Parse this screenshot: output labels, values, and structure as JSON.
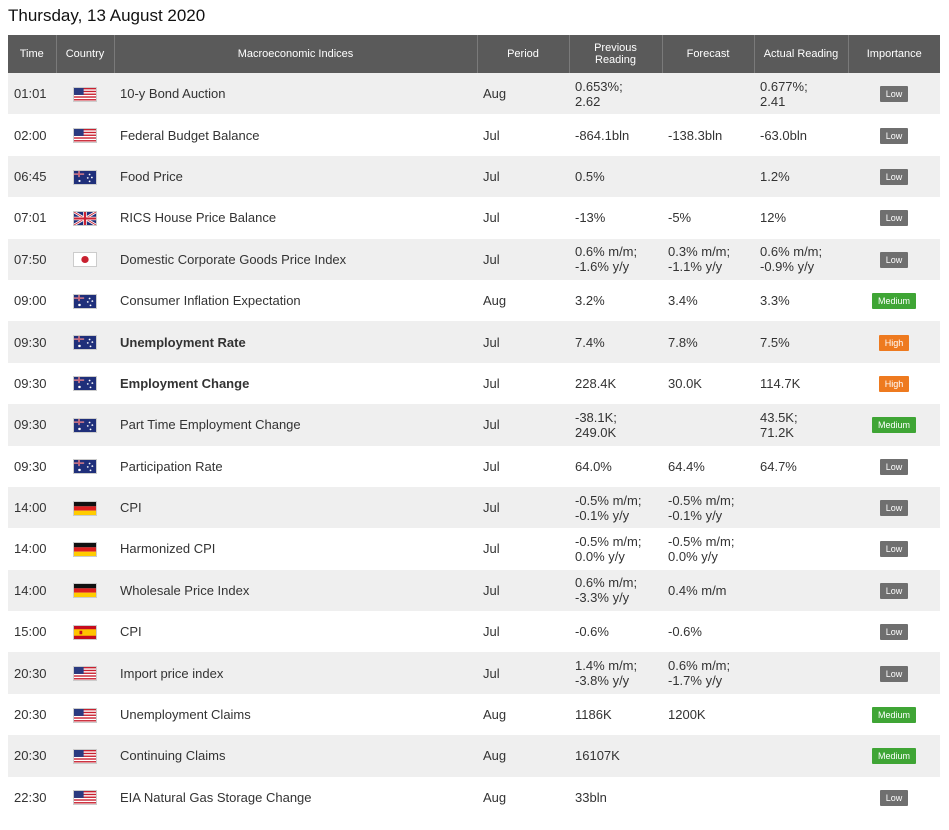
{
  "page_title": "Thursday, 13 August 2020",
  "headers": {
    "time": "Time",
    "country": "Country",
    "indices": "Macroeconomic Indices",
    "period": "Period",
    "previous_line1": "Previous",
    "previous_line2": "Reading",
    "forecast": "Forecast",
    "actual": "Actual Reading",
    "importance": "Importance"
  },
  "colors": {
    "header_bg": "#5a5a5a",
    "row_alt_bg": "#efefef",
    "positive": "#3a9a2c",
    "negative": "#e23a30",
    "low": "#6f6f6f",
    "medium": "#3fa535",
    "high": "#ee7a1f"
  },
  "rows": [
    {
      "time": "01:01",
      "flag": "us-flag-icon",
      "name": "10-y Bond Auction",
      "bold": false,
      "period": "Aug",
      "prev1": "0.653%;",
      "prev2": "2.62",
      "fc1": "",
      "fc2": "",
      "act1": "0.677%;",
      "act2": "2.41",
      "act_color": "",
      "importance": "Low"
    },
    {
      "time": "02:00",
      "flag": "us-flag-icon",
      "name": "Federal Budget Balance",
      "bold": false,
      "period": "Jul",
      "prev1": "-864.1bln",
      "prev2": "",
      "fc1": "-138.3bln",
      "fc2": "",
      "act1": "-63.0bln",
      "act2": "",
      "act_color": "green",
      "importance": "Low"
    },
    {
      "time": "06:45",
      "flag": "nz-flag-icon",
      "name": "Food Price",
      "bold": false,
      "period": "Jul",
      "prev1": "0.5%",
      "prev2": "",
      "fc1": "",
      "fc2": "",
      "act1": "1.2%",
      "act2": "",
      "act_color": "",
      "importance": "Low"
    },
    {
      "time": "07:01",
      "flag": "uk-flag-icon",
      "name": "RICS House Price Balance",
      "bold": false,
      "period": "Jul",
      "prev1": "-13%",
      "prev2": "",
      "fc1": "-5%",
      "fc2": "",
      "act1": "12%",
      "act2": "",
      "act_color": "green",
      "importance": "Low"
    },
    {
      "time": "07:50",
      "flag": "jp-flag-icon",
      "name": "Domestic Corporate Goods Price Index",
      "bold": false,
      "period": "Jul",
      "prev1": "0.6% m/m;",
      "prev2": "-1.6% y/y",
      "fc1": "0.3% m/m;",
      "fc2": "-1.1% y/y",
      "act1": "0.6% m/m;",
      "act2": "-0.9% y/y",
      "act_color": "green",
      "importance": "Low"
    },
    {
      "time": "09:00",
      "flag": "au-flag-icon",
      "name": "Consumer Inflation Expectation",
      "bold": false,
      "period": "Aug",
      "prev1": "3.2%",
      "prev2": "",
      "fc1": "3.4%",
      "fc2": "",
      "act1": "3.3%",
      "act2": "",
      "act_color": "red",
      "importance": "Medium"
    },
    {
      "time": "09:30",
      "flag": "au-flag-icon",
      "name": "Unemployment Rate",
      "bold": true,
      "period": "Jul",
      "prev1": "7.4%",
      "prev2": "",
      "fc1": "7.8%",
      "fc2": "",
      "act1": "7.5%",
      "act2": "",
      "act_color": "red",
      "importance": "High"
    },
    {
      "time": "09:30",
      "flag": "au-flag-icon",
      "name": "Employment Change",
      "bold": true,
      "period": "Jul",
      "prev1": "228.4K",
      "prev2": "",
      "fc1": "30.0K",
      "fc2": "",
      "act1": "114.7K",
      "act2": "",
      "act_color": "green",
      "importance": "High"
    },
    {
      "time": "09:30",
      "flag": "au-flag-icon",
      "name": "Part Time Employment Change",
      "bold": false,
      "period": "Jul",
      "prev1": "-38.1K;",
      "prev2": "249.0K",
      "fc1": "",
      "fc2": "",
      "act1": "43.5K;",
      "act2": "71.2K",
      "act_color": "",
      "importance": "Medium"
    },
    {
      "time": "09:30",
      "flag": "au-flag-icon",
      "name": "Participation Rate",
      "bold": false,
      "period": "Jul",
      "prev1": "64.0%",
      "prev2": "",
      "fc1": "64.4%",
      "fc2": "",
      "act1": "64.7%",
      "act2": "",
      "act_color": "green",
      "importance": "Low"
    },
    {
      "time": "14:00",
      "flag": "de-flag-icon",
      "name": "CPI",
      "bold": false,
      "period": "Jul",
      "prev1": "-0.5% m/m;",
      "prev2": "-0.1% y/y",
      "fc1": "-0.5% m/m;",
      "fc2": "-0.1% y/y",
      "act1": "",
      "act2": "",
      "act_color": "",
      "importance": "Low"
    },
    {
      "time": "14:00",
      "flag": "de-flag-icon",
      "name": "Harmonized CPI",
      "bold": false,
      "period": "Jul",
      "prev1": "-0.5% m/m;",
      "prev2": "0.0% y/y",
      "fc1": "-0.5% m/m;",
      "fc2": "0.0% y/y",
      "act1": "",
      "act2": "",
      "act_color": "",
      "importance": "Low"
    },
    {
      "time": "14:00",
      "flag": "de-flag-icon",
      "name": "Wholesale Price Index",
      "bold": false,
      "period": "Jul",
      "prev1": "0.6% m/m;",
      "prev2": "-3.3% y/y",
      "fc1": "0.4% m/m",
      "fc2": "",
      "act1": "",
      "act2": "",
      "act_color": "",
      "importance": "Low"
    },
    {
      "time": "15:00",
      "flag": "es-flag-icon",
      "name": "CPI",
      "bold": false,
      "period": "Jul",
      "prev1": "-0.6%",
      "prev2": "",
      "fc1": "-0.6%",
      "fc2": "",
      "act1": "",
      "act2": "",
      "act_color": "",
      "importance": "Low"
    },
    {
      "time": "20:30",
      "flag": "us-flag-icon",
      "name": "Import price index",
      "bold": false,
      "period": "Jul",
      "prev1": "1.4% m/m;",
      "prev2": "-3.8% y/y",
      "fc1": "0.6% m/m;",
      "fc2": "-1.7% y/y",
      "act1": "",
      "act2": "",
      "act_color": "",
      "importance": "Low"
    },
    {
      "time": "20:30",
      "flag": "us-flag-icon",
      "name": "Unemployment Claims",
      "bold": false,
      "period": "Aug",
      "prev1": "1186K",
      "prev2": "",
      "fc1": "1200K",
      "fc2": "",
      "act1": "",
      "act2": "",
      "act_color": "",
      "importance": "Medium"
    },
    {
      "time": "20:30",
      "flag": "us-flag-icon",
      "name": "Continuing Claims",
      "bold": false,
      "period": "Aug",
      "prev1": "16107K",
      "prev2": "",
      "fc1": "",
      "fc2": "",
      "act1": "",
      "act2": "",
      "act_color": "",
      "importance": "Medium"
    },
    {
      "time": "22:30",
      "flag": "us-flag-icon",
      "name": "EIA Natural Gas Storage Change",
      "bold": false,
      "period": "Aug",
      "prev1": "33bln",
      "prev2": "",
      "fc1": "",
      "fc2": "",
      "act1": "",
      "act2": "",
      "act_color": "",
      "importance": "Low"
    }
  ]
}
